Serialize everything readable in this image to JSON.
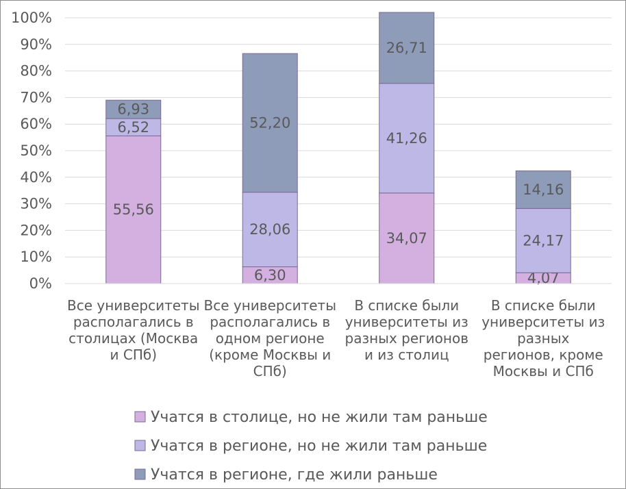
{
  "chart_data": {
    "type": "bar",
    "stacked": true,
    "percent_axis": true,
    "ylim": [
      0,
      100
    ],
    "y_ticks": [
      "0%",
      "10%",
      "20%",
      "30%",
      "40%",
      "50%",
      "60%",
      "70%",
      "80%",
      "90%",
      "100%"
    ],
    "grid": true,
    "legend_position": "bottom",
    "categories": [
      [
        "Все университеты",
        "располагались в",
        "столицах (Москва",
        "и СПб)"
      ],
      [
        "Все университеты",
        "располагались в",
        "одном регионе",
        "(кроме Москвы и",
        "СПб)"
      ],
      [
        "В списке были",
        "университеты из",
        "разных регионов",
        "и из столиц"
      ],
      [
        "В списке были",
        "университеты из",
        "разных",
        "регионов, кроме",
        "Москвы и СПб"
      ]
    ],
    "series": [
      {
        "name": "Учатся в столице, но не жили там раньше",
        "color": "#d4b0e0",
        "values": [
          55.56,
          6.3,
          34.07,
          4.07
        ],
        "labels": [
          "55,56",
          "6,30",
          "34,07",
          "4,07"
        ]
      },
      {
        "name": "Учатся в регионе, но не жили там раньше",
        "color": "#bdb8e6",
        "values": [
          6.52,
          28.06,
          41.26,
          24.17
        ],
        "labels": [
          "6,52",
          "28,06",
          "41,26",
          "24,17"
        ]
      },
      {
        "name": "Учатся в регионе, где жили раньше",
        "color": "#8e9cb9",
        "values": [
          6.93,
          52.2,
          26.71,
          14.16
        ],
        "labels": [
          "6,93",
          "52,20",
          "26,71",
          "14,16"
        ]
      }
    ]
  }
}
